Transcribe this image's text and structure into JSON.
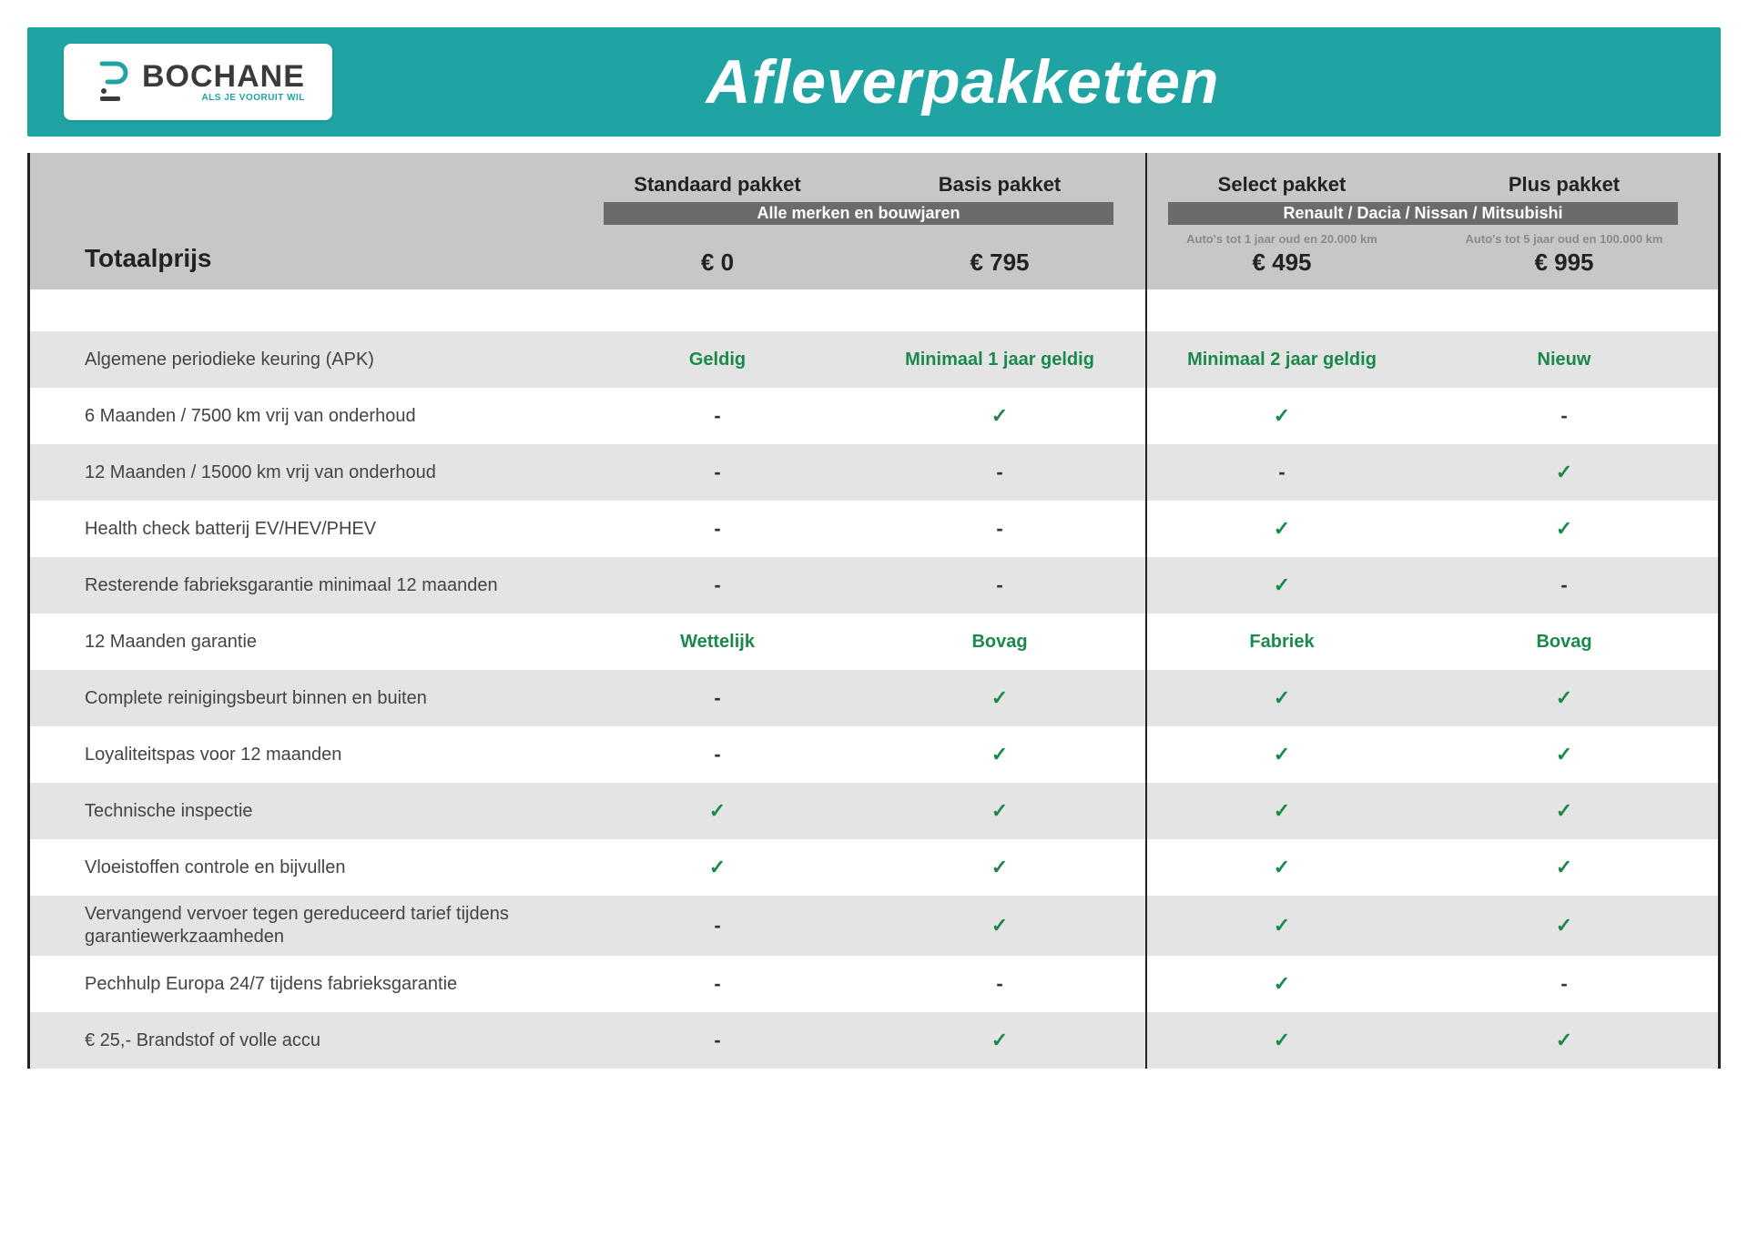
{
  "brand": {
    "name": "BOCHANE",
    "tagline": "ALS JE VOORUIT WIL",
    "accent": "#1fa3a3"
  },
  "title": "Afleverpakketten",
  "header": {
    "totalLabel": "Totaalprijs",
    "columns": [
      {
        "title": "Standaard pakket",
        "sub": "",
        "price": "€ 0"
      },
      {
        "title": "Basis pakket",
        "sub": "",
        "price": "€ 795"
      },
      {
        "title": "Select pakket",
        "sub": "Auto's tot 1 jaar oud en 20.000 km",
        "price": "€ 495"
      },
      {
        "title": "Plus pakket",
        "sub": "Auto's tot 5 jaar oud en 100.000 km",
        "price": "€ 995"
      }
    ],
    "groupA": "Alle merken en bouwjaren",
    "groupB": "Renault / Dacia / Nissan / Mitsubishi"
  },
  "symbols": {
    "check": "✓",
    "dash": "-"
  },
  "colors": {
    "banner": "#1fa3a3",
    "headBg": "#c7c7c7",
    "pillBg": "#6b6b6b",
    "rowAlt": "#e4e4e4",
    "greenText": "#1a8a4a",
    "border": "#222222"
  },
  "rows": [
    {
      "alt": true,
      "label": "Algemene periodieke keuring (APK)",
      "cells": [
        {
          "t": "text",
          "v": "Geldig"
        },
        {
          "t": "text",
          "v": "Minimaal 1 jaar geldig"
        },
        {
          "t": "text",
          "v": "Minimaal 2 jaar geldig"
        },
        {
          "t": "text",
          "v": "Nieuw"
        }
      ]
    },
    {
      "alt": false,
      "label": "6 Maanden / 7500 km vrij van onderhoud",
      "cells": [
        {
          "t": "dash"
        },
        {
          "t": "check"
        },
        {
          "t": "check"
        },
        {
          "t": "dash"
        }
      ]
    },
    {
      "alt": true,
      "label": "12 Maanden / 15000 km vrij van onderhoud",
      "cells": [
        {
          "t": "dash"
        },
        {
          "t": "dash"
        },
        {
          "t": "dash"
        },
        {
          "t": "check"
        }
      ]
    },
    {
      "alt": false,
      "label": "Health check batterij EV/HEV/PHEV",
      "cells": [
        {
          "t": "dash"
        },
        {
          "t": "dash"
        },
        {
          "t": "check"
        },
        {
          "t": "check"
        }
      ]
    },
    {
      "alt": true,
      "label": "Resterende fabrieksgarantie minimaal 12 maanden",
      "cells": [
        {
          "t": "dash"
        },
        {
          "t": "dash"
        },
        {
          "t": "check"
        },
        {
          "t": "dash"
        }
      ]
    },
    {
      "alt": false,
      "label": "12 Maanden  garantie",
      "cells": [
        {
          "t": "text",
          "v": "Wettelijk"
        },
        {
          "t": "text",
          "v": "Bovag"
        },
        {
          "t": "text",
          "v": "Fabriek"
        },
        {
          "t": "text",
          "v": "Bovag"
        }
      ]
    },
    {
      "alt": true,
      "label": "Complete reinigingsbeurt binnen en buiten",
      "cells": [
        {
          "t": "dash"
        },
        {
          "t": "check"
        },
        {
          "t": "check"
        },
        {
          "t": "check"
        }
      ]
    },
    {
      "alt": false,
      "label": "Loyaliteitspas voor 12 maanden",
      "cells": [
        {
          "t": "dash"
        },
        {
          "t": "check"
        },
        {
          "t": "check"
        },
        {
          "t": "check"
        }
      ]
    },
    {
      "alt": true,
      "label": "Technische inspectie",
      "cells": [
        {
          "t": "check"
        },
        {
          "t": "check"
        },
        {
          "t": "check"
        },
        {
          "t": "check"
        }
      ]
    },
    {
      "alt": false,
      "label": "Vloeistoffen controle en bijvullen",
      "cells": [
        {
          "t": "check"
        },
        {
          "t": "check"
        },
        {
          "t": "check"
        },
        {
          "t": "check"
        }
      ]
    },
    {
      "alt": true,
      "label": "Vervangend vervoer tegen gereduceerd tarief tijdens garantiewerkzaamheden",
      "cells": [
        {
          "t": "dash"
        },
        {
          "t": "check"
        },
        {
          "t": "check"
        },
        {
          "t": "check"
        }
      ]
    },
    {
      "alt": false,
      "label": "Pechhulp Europa 24/7 tijdens fabrieksgarantie",
      "cells": [
        {
          "t": "dash"
        },
        {
          "t": "dash"
        },
        {
          "t": "check"
        },
        {
          "t": "dash"
        }
      ]
    },
    {
      "alt": true,
      "label": "€ 25,- Brandstof of  volle accu",
      "cells": [
        {
          "t": "dash"
        },
        {
          "t": "check"
        },
        {
          "t": "check"
        },
        {
          "t": "check"
        }
      ]
    }
  ]
}
